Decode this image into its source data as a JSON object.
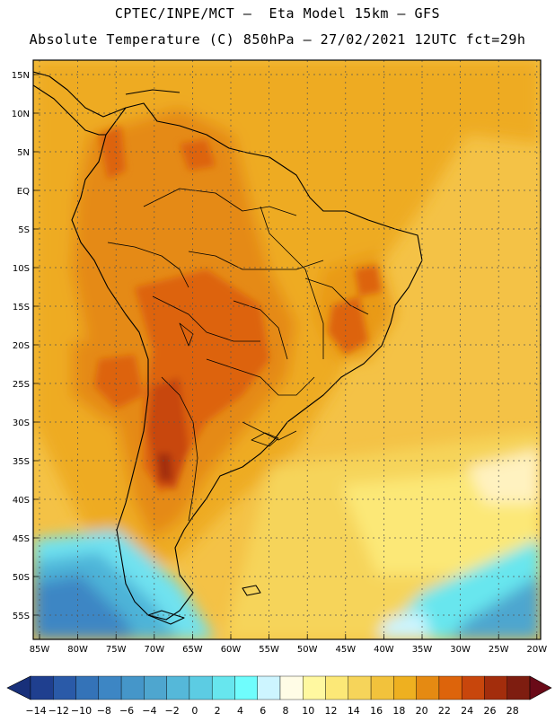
{
  "header": {
    "line1": "CPTEC/INPE/MCT —  Eta Model 15km — GFS",
    "line2": "Absolute Temperature (C) 850hPa — 27/02/2021 12UTC fct=29h"
  },
  "axes": {
    "lat_labels": [
      "15N",
      "10N",
      "5N",
      "EQ",
      "5S",
      "10S",
      "15S",
      "20S",
      "25S",
      "30S",
      "35S",
      "40S",
      "45S",
      "50S",
      "55S"
    ],
    "lon_labels": [
      "85W",
      "80W",
      "75W",
      "70W",
      "65W",
      "60W",
      "55W",
      "50W",
      "45W",
      "40W",
      "35W",
      "30W",
      "25W",
      "20W"
    ]
  },
  "colorbar": {
    "labels": [
      "-14",
      "-12",
      "-10",
      "-8",
      "-6",
      "-4",
      "-2",
      "0",
      "2",
      "4",
      "6",
      "8",
      "10",
      "12",
      "14",
      "16",
      "18",
      "20",
      "22",
      "24",
      "26",
      "28"
    ],
    "colors": [
      "#1f3f8f",
      "#2a5aa8",
      "#3473b8",
      "#3d86c4",
      "#4596c9",
      "#4ea6cf",
      "#55b8d9",
      "#5ccce3",
      "#67e6ee",
      "#6ffdfd",
      "#cdf5ff",
      "#fffce6",
      "#fff8a0",
      "#fce877",
      "#f6d45a",
      "#f2c23c",
      "#eeb020",
      "#e58a12",
      "#dd640b",
      "#c8460c",
      "#a32d0c",
      "#7e1d10"
    ],
    "under_color": "#18307a",
    "over_color": "#6a0a18"
  },
  "colors": {
    "ocean_base": "#f4c246",
    "land_warm": "#e9991a"
  }
}
